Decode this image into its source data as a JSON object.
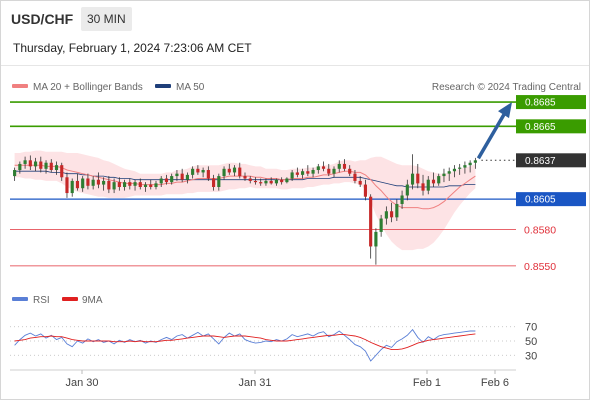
{
  "header": {
    "symbol": "USD/CHF",
    "timeframe": "30 MIN",
    "timestamp": "Thursday, February 1, 2024 7:23:06 AM CET"
  },
  "legend": {
    "ma20_label": "MA 20 + Bollinger Bands",
    "ma50_label": "MA 50",
    "credit": "Research © 2024 Trading Central"
  },
  "rsi_legend": {
    "rsi_label": "RSI",
    "ma_label": "9MA"
  },
  "colors": {
    "resistance": "#3a9c00",
    "support": "#1a56c4",
    "stop": "#e0303a",
    "current": "#333333",
    "arrow": "#2e5f9e",
    "ma20": "#f08080",
    "ma50": "#1f3f7a",
    "band": "#fde3e5",
    "candle_up": "#2e7d32",
    "candle_down": "#c62828"
  },
  "chart_data": {
    "type": "candlestick",
    "y_range": [
      0.854,
      0.869
    ],
    "levels": [
      {
        "label": "0.8685",
        "value": 0.8685,
        "kind": "resistance"
      },
      {
        "label": "0.8665",
        "value": 0.8665,
        "kind": "resistance"
      },
      {
        "label": "0.8637",
        "value": 0.8637,
        "kind": "current"
      },
      {
        "label": "0.8605",
        "value": 0.8605,
        "kind": "support"
      },
      {
        "label": "0.8580",
        "value": 0.858,
        "kind": "stop"
      },
      {
        "label": "0.8550",
        "value": 0.855,
        "kind": "stop"
      }
    ],
    "x_labels": [
      "Jan 30",
      "Jan 31",
      "Feb 1",
      "Feb 6"
    ],
    "ohlc": [
      [
        0.8624,
        0.8631,
        0.862,
        0.8629
      ],
      [
        0.8629,
        0.8636,
        0.8626,
        0.8634
      ],
      [
        0.8634,
        0.864,
        0.863,
        0.8637
      ],
      [
        0.8637,
        0.8641,
        0.8629,
        0.8632
      ],
      [
        0.8632,
        0.8639,
        0.8628,
        0.8636
      ],
      [
        0.8636,
        0.864,
        0.8627,
        0.863
      ],
      [
        0.863,
        0.8637,
        0.8626,
        0.8635
      ],
      [
        0.8635,
        0.8638,
        0.8627,
        0.8629
      ],
      [
        0.8629,
        0.8636,
        0.8625,
        0.8633
      ],
      [
        0.8633,
        0.8635,
        0.862,
        0.8623
      ],
      [
        0.8623,
        0.8627,
        0.8606,
        0.861
      ],
      [
        0.861,
        0.8622,
        0.8607,
        0.862
      ],
      [
        0.862,
        0.8626,
        0.8612,
        0.8614
      ],
      [
        0.8614,
        0.8624,
        0.8611,
        0.8622
      ],
      [
        0.8622,
        0.8626,
        0.8613,
        0.8616
      ],
      [
        0.8616,
        0.8624,
        0.8613,
        0.8621
      ],
      [
        0.8621,
        0.8627,
        0.8614,
        0.8617
      ],
      [
        0.8617,
        0.8623,
        0.8612,
        0.862
      ],
      [
        0.862,
        0.8624,
        0.861,
        0.8613
      ],
      [
        0.8613,
        0.8622,
        0.861,
        0.8619
      ],
      [
        0.8619,
        0.8623,
        0.8612,
        0.8615
      ],
      [
        0.8615,
        0.8621,
        0.8612,
        0.8619
      ],
      [
        0.8619,
        0.8622,
        0.8613,
        0.8616
      ],
      [
        0.8616,
        0.8621,
        0.8612,
        0.8619
      ],
      [
        0.8619,
        0.8622,
        0.8613,
        0.8615
      ],
      [
        0.8615,
        0.8619,
        0.8611,
        0.8617
      ],
      [
        0.8617,
        0.8621,
        0.8613,
        0.8615
      ],
      [
        0.8615,
        0.862,
        0.8613,
        0.8618
      ],
      [
        0.8618,
        0.8624,
        0.8615,
        0.8622
      ],
      [
        0.8622,
        0.8625,
        0.8617,
        0.8619
      ],
      [
        0.8619,
        0.8626,
        0.8617,
        0.8624
      ],
      [
        0.8624,
        0.8629,
        0.862,
        0.8626
      ],
      [
        0.8626,
        0.863,
        0.8619,
        0.8621
      ],
      [
        0.8621,
        0.8627,
        0.8618,
        0.8625
      ],
      [
        0.8625,
        0.8632,
        0.8622,
        0.863
      ],
      [
        0.863,
        0.8633,
        0.8625,
        0.8627
      ],
      [
        0.8627,
        0.8631,
        0.8623,
        0.8629
      ],
      [
        0.8629,
        0.8632,
        0.862,
        0.8622
      ],
      [
        0.8622,
        0.8625,
        0.8612,
        0.8615
      ],
      [
        0.8615,
        0.8626,
        0.8612,
        0.8624
      ],
      [
        0.8624,
        0.8632,
        0.8621,
        0.863
      ],
      [
        0.863,
        0.8634,
        0.8625,
        0.8627
      ],
      [
        0.8627,
        0.8633,
        0.8624,
        0.8631
      ],
      [
        0.8631,
        0.8635,
        0.8622,
        0.8624
      ],
      [
        0.8624,
        0.8627,
        0.862,
        0.8622
      ],
      [
        0.8622,
        0.8624,
        0.8618,
        0.862
      ],
      [
        0.862,
        0.8623,
        0.8617,
        0.8619
      ],
      [
        0.8619,
        0.8622,
        0.8616,
        0.8618
      ],
      [
        0.8618,
        0.8622,
        0.8616,
        0.862
      ],
      [
        0.862,
        0.8623,
        0.8617,
        0.8618
      ],
      [
        0.8618,
        0.8622,
        0.8616,
        0.8621
      ],
      [
        0.8621,
        0.8623,
        0.8617,
        0.8619
      ],
      [
        0.8619,
        0.8623,
        0.8618,
        0.8622
      ],
      [
        0.8622,
        0.8629,
        0.862,
        0.8627
      ],
      [
        0.8627,
        0.8631,
        0.8623,
        0.8625
      ],
      [
        0.8625,
        0.863,
        0.8622,
        0.8628
      ],
      [
        0.8628,
        0.8633,
        0.8624,
        0.8626
      ],
      [
        0.8626,
        0.8631,
        0.8623,
        0.8629
      ],
      [
        0.8629,
        0.8634,
        0.8626,
        0.8632
      ],
      [
        0.8632,
        0.8636,
        0.8628,
        0.863
      ],
      [
        0.863,
        0.8634,
        0.8624,
        0.8626
      ],
      [
        0.8626,
        0.8632,
        0.8623,
        0.863
      ],
      [
        0.863,
        0.8637,
        0.8627,
        0.8634
      ],
      [
        0.8634,
        0.8638,
        0.8628,
        0.863
      ],
      [
        0.863,
        0.8633,
        0.8624,
        0.8626
      ],
      [
        0.8626,
        0.8629,
        0.8618,
        0.862
      ],
      [
        0.862,
        0.8624,
        0.8615,
        0.8617
      ],
      [
        0.8617,
        0.8621,
        0.8604,
        0.8607
      ],
      [
        0.8607,
        0.8609,
        0.8556,
        0.8566
      ],
      [
        0.8566,
        0.8581,
        0.8551,
        0.8578
      ],
      [
        0.8578,
        0.8592,
        0.8574,
        0.8589
      ],
      [
        0.8589,
        0.8599,
        0.8584,
        0.8595
      ],
      [
        0.8595,
        0.8602,
        0.8586,
        0.859
      ],
      [
        0.859,
        0.8605,
        0.8587,
        0.8601
      ],
      [
        0.8601,
        0.8612,
        0.8597,
        0.8608
      ],
      [
        0.8608,
        0.8621,
        0.8604,
        0.8617
      ],
      [
        0.8617,
        0.8642,
        0.8613,
        0.8626
      ],
      [
        0.8626,
        0.8634,
        0.8614,
        0.8618
      ],
      [
        0.8618,
        0.8625,
        0.8608,
        0.8612
      ],
      [
        0.8612,
        0.8624,
        0.8609,
        0.8621
      ],
      [
        0.8621,
        0.8627,
        0.8615,
        0.8618
      ],
      [
        0.8618,
        0.8626,
        0.8616,
        0.8624
      ],
      [
        0.8624,
        0.863,
        0.8619,
        0.8626
      ],
      [
        0.8626,
        0.8631,
        0.862,
        0.8628
      ],
      [
        0.8628,
        0.8633,
        0.8623,
        0.863
      ],
      [
        0.863,
        0.8634,
        0.8625,
        0.8631
      ],
      [
        0.8631,
        0.8636,
        0.8626,
        0.8633
      ],
      [
        0.8633,
        0.8637,
        0.8627,
        0.8635
      ],
      [
        0.8635,
        0.8639,
        0.863,
        0.8637
      ]
    ],
    "rsi_axis": [
      "70",
      "50",
      "30"
    ],
    "rsi_range": [
      15,
      85
    ],
    "rsi": [
      44,
      52,
      58,
      61,
      57,
      60,
      54,
      58,
      52,
      55,
      46,
      42,
      50,
      47,
      53,
      49,
      52,
      48,
      50,
      46,
      51,
      48,
      52,
      49,
      51,
      47,
      50,
      48,
      52,
      55,
      52,
      57,
      59,
      54,
      58,
      62,
      57,
      60,
      53,
      46,
      55,
      61,
      57,
      60,
      52,
      49,
      47,
      48,
      50,
      49,
      52,
      50,
      53,
      59,
      56,
      58,
      60,
      57,
      61,
      63,
      56,
      59,
      64,
      58,
      52,
      45,
      42,
      36,
      22,
      30,
      38,
      44,
      41,
      49,
      53,
      58,
      66,
      55,
      48,
      56,
      52,
      57,
      59,
      60,
      61,
      62,
      63,
      64,
      64
    ],
    "rsi_ma": [
      50,
      51,
      52,
      54,
      55,
      56,
      56,
      57,
      56,
      56,
      54,
      52,
      51,
      50,
      50,
      50,
      50,
      50,
      50,
      49,
      49,
      49,
      50,
      49,
      50,
      49,
      49,
      49,
      50,
      51,
      51,
      52,
      53,
      54,
      55,
      56,
      57,
      57,
      57,
      56,
      55,
      56,
      57,
      57,
      57,
      56,
      55,
      54,
      52,
      51,
      50,
      50,
      50,
      51,
      52,
      53,
      54,
      55,
      56,
      57,
      58,
      58,
      59,
      59,
      58,
      57,
      55,
      52,
      48,
      45,
      42,
      40,
      38,
      38,
      39,
      41,
      44,
      47,
      49,
      51,
      52,
      53,
      54,
      55,
      56,
      57,
      58,
      59,
      60
    ],
    "ma20": [
      0.8633,
      0.8633,
      0.8633,
      0.8633,
      0.8633,
      0.8633,
      0.8632,
      0.8632,
      0.8632,
      0.8631,
      0.8629,
      0.8628,
      0.8627,
      0.8626,
      0.8625,
      0.8624,
      0.8623,
      0.8622,
      0.8621,
      0.862,
      0.8619,
      0.8618,
      0.8618,
      0.8618,
      0.8617,
      0.8617,
      0.8617,
      0.8617,
      0.8617,
      0.8618,
      0.8618,
      0.8619,
      0.8619,
      0.862,
      0.8621,
      0.8622,
      0.8622,
      0.8622,
      0.8622,
      0.8622,
      0.8623,
      0.8624,
      0.8624,
      0.8624,
      0.8624,
      0.8624,
      0.8623,
      0.8623,
      0.8622,
      0.8622,
      0.8622,
      0.8621,
      0.8621,
      0.8622,
      0.8622,
      0.8622,
      0.8623,
      0.8623,
      0.8624,
      0.8625,
      0.8625,
      0.8626,
      0.8627,
      0.8628,
      0.8628,
      0.8627,
      0.8627,
      0.8625,
      0.8621,
      0.8616,
      0.8612,
      0.8607,
      0.8603,
      0.86,
      0.8598,
      0.8598,
      0.8598,
      0.8598,
      0.8597,
      0.8597,
      0.8598,
      0.86,
      0.8603,
      0.8607,
      0.8611,
      0.8615,
      0.8618,
      0.8621,
      0.8624
    ],
    "ma50": [
      0.8628,
      0.8628,
      0.8628,
      0.8628,
      0.8628,
      0.8628,
      0.8628,
      0.8627,
      0.8627,
      0.8627,
      0.8626,
      0.8626,
      0.8626,
      0.8625,
      0.8625,
      0.8624,
      0.8624,
      0.8624,
      0.8623,
      0.8623,
      0.8622,
      0.8622,
      0.8622,
      0.8621,
      0.8621,
      0.8621,
      0.8621,
      0.8621,
      0.8621,
      0.8621,
      0.8621,
      0.8621,
      0.8621,
      0.8621,
      0.8621,
      0.8621,
      0.8621,
      0.8621,
      0.8621,
      0.8621,
      0.8621,
      0.8621,
      0.8621,
      0.8621,
      0.8621,
      0.8621,
      0.8621,
      0.8621,
      0.8621,
      0.8621,
      0.8621,
      0.8621,
      0.8621,
      0.8621,
      0.8621,
      0.8621,
      0.8622,
      0.8622,
      0.8622,
      0.8622,
      0.8622,
      0.8623,
      0.8623,
      0.8623,
      0.8623,
      0.8623,
      0.8623,
      0.8622,
      0.8621,
      0.862,
      0.8619,
      0.8618,
      0.8617,
      0.8616,
      0.8616,
      0.8615,
      0.8615,
      0.8615,
      0.8615,
      0.8615,
      0.8615,
      0.8615,
      0.8615,
      0.8616,
      0.8616,
      0.8616,
      0.8617,
      0.8617,
      0.8617
    ],
    "band_width": [
      0.001,
      0.001,
      0.0011,
      0.0011,
      0.0012,
      0.0012,
      0.0012,
      0.0012,
      0.0012,
      0.0013,
      0.0014,
      0.0015,
      0.0016,
      0.0016,
      0.0016,
      0.0016,
      0.0016,
      0.0015,
      0.0015,
      0.0014,
      0.0013,
      0.0012,
      0.0011,
      0.001,
      0.0009,
      0.0009,
      0.0009,
      0.0009,
      0.0009,
      0.0009,
      0.0009,
      0.001,
      0.001,
      0.001,
      0.0011,
      0.0011,
      0.0011,
      0.0011,
      0.0011,
      0.0011,
      0.0011,
      0.0011,
      0.0011,
      0.001,
      0.001,
      0.0009,
      0.0009,
      0.0009,
      0.0008,
      0.0008,
      0.0008,
      0.0008,
      0.0008,
      0.0008,
      0.0008,
      0.0008,
      0.0008,
      0.0008,
      0.0008,
      0.0008,
      0.0008,
      0.0008,
      0.0009,
      0.0009,
      0.0009,
      0.0009,
      0.001,
      0.0012,
      0.0018,
      0.0024,
      0.0028,
      0.0031,
      0.0033,
      0.0034,
      0.0035,
      0.0035,
      0.0035,
      0.0034,
      0.0033,
      0.0031,
      0.0029,
      0.0026,
      0.0023,
      0.002,
      0.0017,
      0.0015,
      0.0013,
      0.0011,
      0.001
    ],
    "forecast_target": 0.8685
  }
}
